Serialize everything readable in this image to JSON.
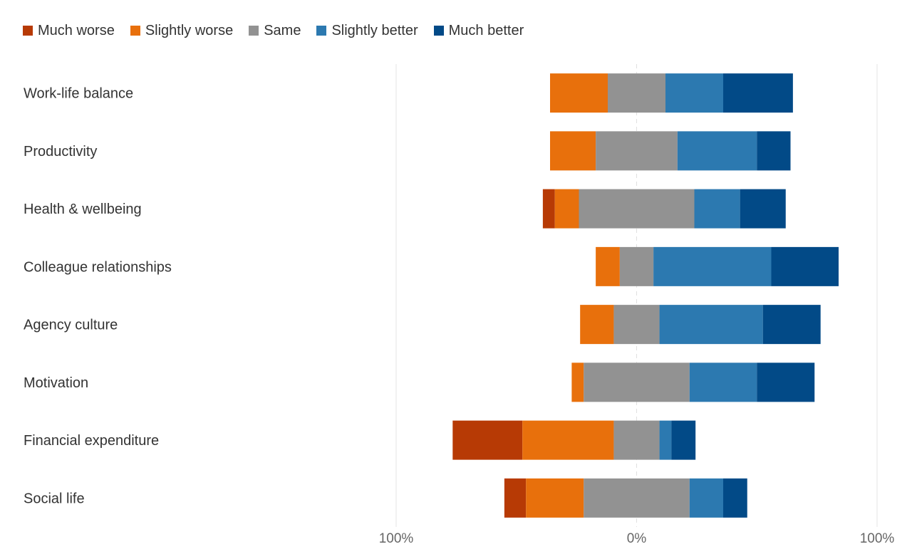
{
  "chart_data": {
    "type": "bar",
    "orientation": "horizontal",
    "stacked": "diverging",
    "title": "",
    "xlabel": "",
    "ylabel": "",
    "xlim": [
      -100,
      100
    ],
    "x_tick_labels": [
      "100%",
      "0%",
      "100%"
    ],
    "legend_position": "top-left",
    "grid": false,
    "categories": [
      "Work-life balance",
      "Productivity",
      "Health & wellbeing",
      "Colleague relationships",
      "Agency culture",
      "Motivation",
      "Financial expenditure",
      "Social life"
    ],
    "series": [
      {
        "name": "Much worse",
        "color": "#b73a05",
        "values": [
          0,
          0,
          5,
          0,
          0,
          0,
          29,
          9
        ]
      },
      {
        "name": "Slightly worse",
        "color": "#e8700c",
        "values": [
          24,
          19,
          10,
          10,
          14,
          5,
          38,
          24
        ]
      },
      {
        "name": "Same",
        "color": "#929292",
        "values": [
          24,
          34,
          48,
          14,
          19,
          44,
          19,
          44
        ]
      },
      {
        "name": "Slightly better",
        "color": "#2c79b0",
        "values": [
          24,
          33,
          19,
          49,
          43,
          28,
          5,
          14
        ]
      },
      {
        "name": "Much better",
        "color": "#024a87",
        "values": [
          29,
          14,
          19,
          28,
          24,
          24,
          10,
          10
        ]
      }
    ]
  }
}
